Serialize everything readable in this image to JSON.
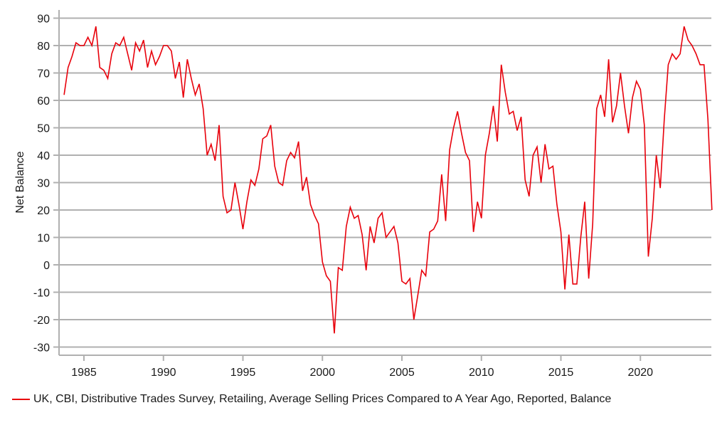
{
  "chart_data": {
    "type": "line",
    "title": "",
    "xlabel": "",
    "ylabel": "Net Balance",
    "xlim": [
      1983.5,
      2024.75
    ],
    "ylim": [
      -33,
      93
    ],
    "yticks": [
      90,
      80,
      70,
      60,
      50,
      40,
      30,
      20,
      10,
      0,
      -10,
      -20,
      -30
    ],
    "ytick_labels": [
      "90",
      "80",
      "70",
      "60",
      "50",
      "40",
      "30",
      "20",
      "10",
      "0",
      "-10",
      "-20",
      "-30"
    ],
    "xticks": [
      1985,
      1990,
      1995,
      2000,
      2005,
      2010,
      2015,
      2020
    ],
    "xtick_labels": [
      "1985",
      "1990",
      "1995",
      "2000",
      "2005",
      "2010",
      "2015",
      "2020"
    ],
    "grid": "horizontal",
    "legend_position": "bottom-left",
    "x_start": 1983.75,
    "x_step": 0.25,
    "series": [
      {
        "name": "UK, CBI, Distributive Trades Survey, Retailing, Average Selling Prices Compared to A Year Ago, Reported, Balance",
        "color": "#e8000b",
        "values": [
          62,
          72,
          76,
          81,
          80,
          80,
          83,
          80,
          87,
          72,
          71,
          68,
          77,
          81,
          80,
          83,
          77,
          71,
          81,
          78,
          82,
          72,
          78,
          73,
          76,
          80,
          80,
          78,
          68,
          74,
          61,
          75,
          68,
          62,
          66,
          57,
          40,
          44,
          38,
          51,
          25,
          19,
          20,
          30,
          22,
          13,
          23,
          31,
          29,
          35,
          46,
          47,
          51,
          36,
          30,
          29,
          38,
          41,
          39,
          45,
          27,
          32,
          22,
          18,
          15,
          1,
          -4,
          -6,
          -25,
          -1,
          -2,
          14,
          21,
          17,
          18,
          11,
          -2,
          14,
          8,
          17,
          19,
          10,
          12,
          14,
          8,
          -6,
          -7,
          -5,
          -20,
          -11,
          -2,
          -4,
          12,
          13,
          16,
          33,
          16,
          42,
          50,
          56,
          48,
          41,
          38,
          12,
          23,
          17,
          40,
          48,
          58,
          45,
          73,
          63,
          55,
          56,
          49,
          54,
          31,
          25,
          40,
          43,
          30,
          44,
          35,
          36,
          22,
          12,
          -9,
          11,
          -7,
          -7,
          10,
          23,
          -5,
          15,
          57,
          62,
          54,
          75,
          52,
          58,
          70,
          58,
          48,
          61,
          67,
          64,
          51,
          3,
          17,
          40,
          28,
          53,
          73,
          77,
          75,
          77,
          87,
          82,
          80,
          77,
          73,
          73,
          53,
          20
        ]
      }
    ]
  },
  "legend": {
    "label": "UK, CBI, Distributive Trades Survey, Retailing, Average Selling Prices Compared to A Year Ago, Reported, Balance",
    "color": "#e8000b"
  }
}
